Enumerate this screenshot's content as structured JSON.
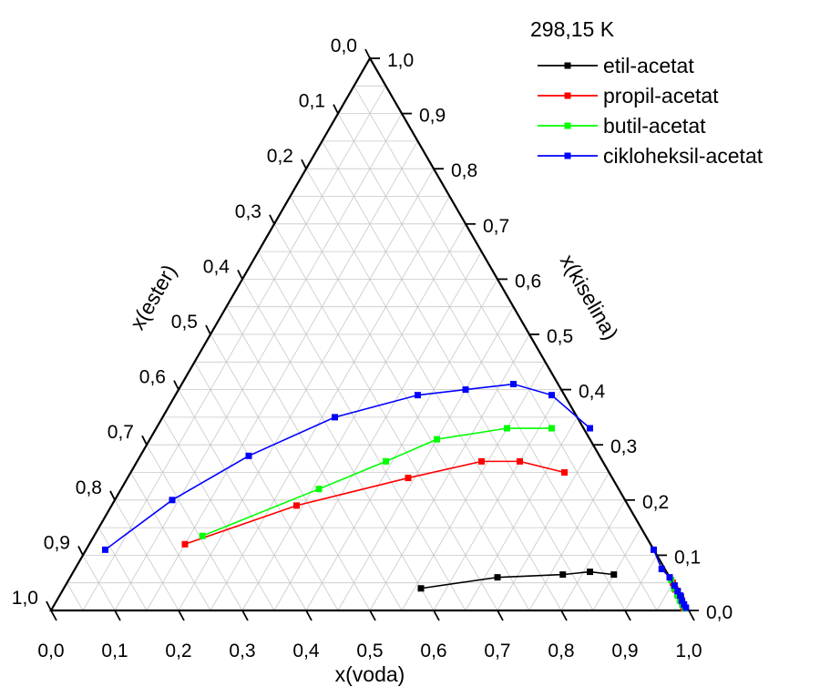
{
  "chart_data": {
    "type": "ternary-line",
    "temperature_label": "298,15 K",
    "axes": {
      "bottom": {
        "label": "x(voda)",
        "ticks": [
          "0,0",
          "0,1",
          "0,2",
          "0,3",
          "0,4",
          "0,5",
          "0,6",
          "0,7",
          "0,8",
          "0,9",
          "1,0"
        ]
      },
      "left": {
        "label": "x(ester)",
        "ticks": [
          "0,0",
          "0,1",
          "0,2",
          "0,3",
          "0,4",
          "0,5",
          "0,6",
          "0,7",
          "0,8",
          "0,9",
          "1,0"
        ]
      },
      "right": {
        "label": "x(kiselina)",
        "ticks": [
          "0,0",
          "0,1",
          "0,2",
          "0,3",
          "0,4",
          "0,5",
          "0,6",
          "0,7",
          "0,8",
          "0,9",
          "1,0"
        ]
      }
    },
    "range": [
      0,
      1
    ],
    "grid": true,
    "grid_step": 0.05,
    "legend_position": "top-right",
    "note": "points given as {voda, kiselina}; x(ester) = 1 - voda - kiselina",
    "series": [
      {
        "name": "etil-acetat",
        "color": "#000000",
        "phase_left": [
          {
            "voda": 0.56,
            "kiselina": 0.04
          },
          {
            "voda": 0.67,
            "kiselina": 0.06
          },
          {
            "voda": 0.77,
            "kiselina": 0.065
          },
          {
            "voda": 0.81,
            "kiselina": 0.07
          },
          {
            "voda": 0.85,
            "kiselina": 0.065
          }
        ],
        "phase_right": [
          {
            "voda": 0.955,
            "kiselina": 0.045
          },
          {
            "voda": 0.965,
            "kiselina": 0.035
          },
          {
            "voda": 0.975,
            "kiselina": 0.025
          },
          {
            "voda": 0.982,
            "kiselina": 0.015
          },
          {
            "voda": 0.99,
            "kiselina": 0.005
          }
        ]
      },
      {
        "name": "propil-acetat",
        "color": "#ff0000",
        "phase_left": [
          {
            "voda": 0.15,
            "kiselina": 0.12
          },
          {
            "voda": 0.29,
            "kiselina": 0.19
          },
          {
            "voda": 0.44,
            "kiselina": 0.24
          },
          {
            "voda": 0.54,
            "kiselina": 0.27
          },
          {
            "voda": 0.6,
            "kiselina": 0.27
          },
          {
            "voda": 0.68,
            "kiselina": 0.25
          }
        ],
        "phase_right": [
          {
            "voda": 0.95,
            "kiselina": 0.05
          },
          {
            "voda": 0.96,
            "kiselina": 0.038
          },
          {
            "voda": 0.97,
            "kiselina": 0.027
          },
          {
            "voda": 0.978,
            "kiselina": 0.018
          },
          {
            "voda": 0.985,
            "kiselina": 0.01
          },
          {
            "voda": 0.99,
            "kiselina": 0.004
          }
        ]
      },
      {
        "name": "butil-acetat",
        "color": "#00ff00",
        "phase_left": [
          {
            "voda": 0.17,
            "kiselina": 0.135
          },
          {
            "voda": 0.31,
            "kiselina": 0.22
          },
          {
            "voda": 0.39,
            "kiselina": 0.27
          },
          {
            "voda": 0.45,
            "kiselina": 0.31
          },
          {
            "voda": 0.55,
            "kiselina": 0.33
          },
          {
            "voda": 0.62,
            "kiselina": 0.33
          }
        ],
        "phase_right": [
          {
            "voda": 0.945,
            "kiselina": 0.055
          },
          {
            "voda": 0.957,
            "kiselina": 0.04
          },
          {
            "voda": 0.968,
            "kiselina": 0.028
          },
          {
            "voda": 0.977,
            "kiselina": 0.018
          },
          {
            "voda": 0.985,
            "kiselina": 0.01
          },
          {
            "voda": 0.992,
            "kiselina": 0.004
          }
        ]
      },
      {
        "name": "cikloheksil-acetat",
        "color": "#0000ff",
        "phase_left": [
          {
            "voda": 0.03,
            "kiselina": 0.11
          },
          {
            "voda": 0.09,
            "kiselina": 0.2
          },
          {
            "voda": 0.17,
            "kiselina": 0.28
          },
          {
            "voda": 0.27,
            "kiselina": 0.35
          },
          {
            "voda": 0.38,
            "kiselina": 0.39
          },
          {
            "voda": 0.45,
            "kiselina": 0.4
          },
          {
            "voda": 0.52,
            "kiselina": 0.41
          },
          {
            "voda": 0.59,
            "kiselina": 0.39
          },
          {
            "voda": 0.68,
            "kiselina": 0.33
          }
        ],
        "phase_right": [
          {
            "voda": 0.89,
            "kiselina": 0.11
          },
          {
            "voda": 0.92,
            "kiselina": 0.075
          },
          {
            "voda": 0.94,
            "kiselina": 0.06
          },
          {
            "voda": 0.955,
            "kiselina": 0.045
          },
          {
            "voda": 0.965,
            "kiselina": 0.035
          },
          {
            "voda": 0.973,
            "kiselina": 0.027
          },
          {
            "voda": 0.98,
            "kiselina": 0.018
          },
          {
            "voda": 0.987,
            "kiselina": 0.011
          },
          {
            "voda": 0.993,
            "kiselina": 0.005
          }
        ]
      }
    ]
  }
}
